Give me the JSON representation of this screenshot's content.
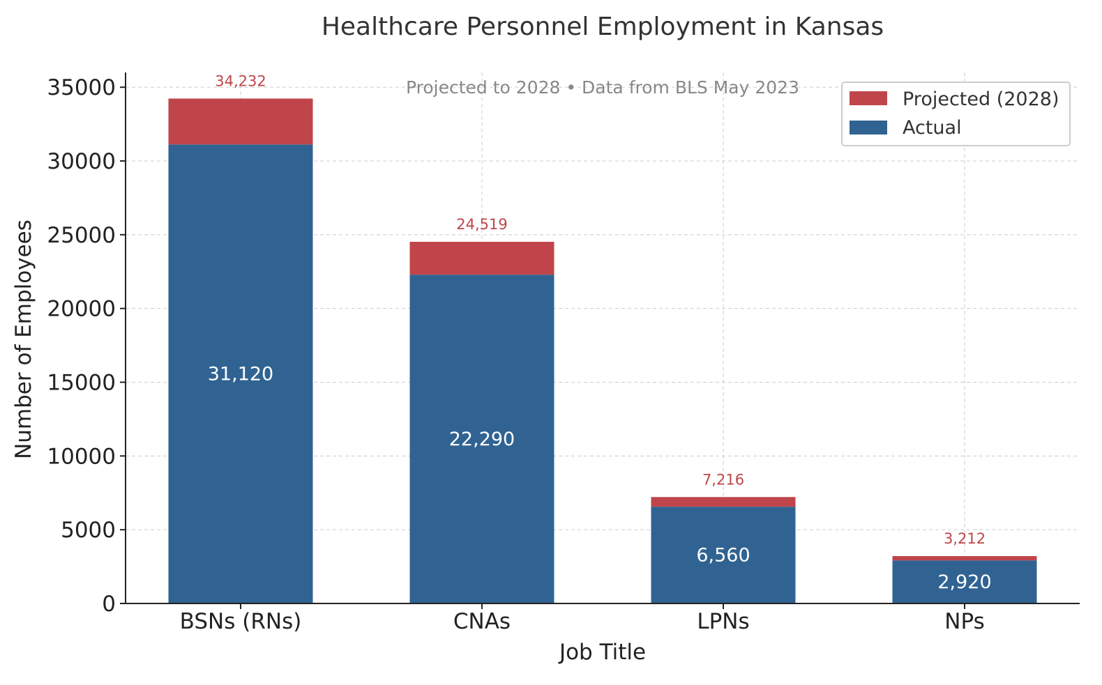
{
  "chart_data": {
    "type": "bar",
    "stacked": true,
    "title": "Healthcare Personnel Employment in Kansas",
    "subtitle": "Projected to 2028 • Data from BLS May 2023",
    "xlabel": "Job Title",
    "ylabel": "Number of Employees",
    "categories": [
      "BSNs (RNs)",
      "CNAs",
      "LPNs",
      "NPs"
    ],
    "series": [
      {
        "name": "Actual",
        "values": [
          31120,
          22290,
          6560,
          2920
        ],
        "labels": [
          "31,120",
          "22,290",
          "6,560",
          "2,920"
        ],
        "color": "#306392"
      },
      {
        "name": "Projected (2028)",
        "values": [
          3112,
          2229,
          656,
          292
        ],
        "color": "#c0454a"
      }
    ],
    "totals": [
      34232,
      24519,
      7216,
      3212
    ],
    "total_labels": [
      "34,232",
      "24,519",
      "7,216",
      "3,212"
    ],
    "ylim": [
      0,
      36000
    ],
    "yticks": [
      0,
      5000,
      10000,
      15000,
      20000,
      25000,
      30000,
      35000
    ],
    "ytick_labels": [
      "0",
      "5000",
      "10000",
      "15000",
      "20000",
      "25000",
      "30000",
      "35000"
    ],
    "grid": true,
    "legend_position": "top-right",
    "legend_entries": [
      "Projected (2028)",
      "Actual"
    ],
    "colors": {
      "actual": "#306392",
      "projected": "#c0454a",
      "total_label": "#c0454a",
      "subtitle": "#888888",
      "title": "#333333",
      "grid": "#cccccc"
    }
  }
}
